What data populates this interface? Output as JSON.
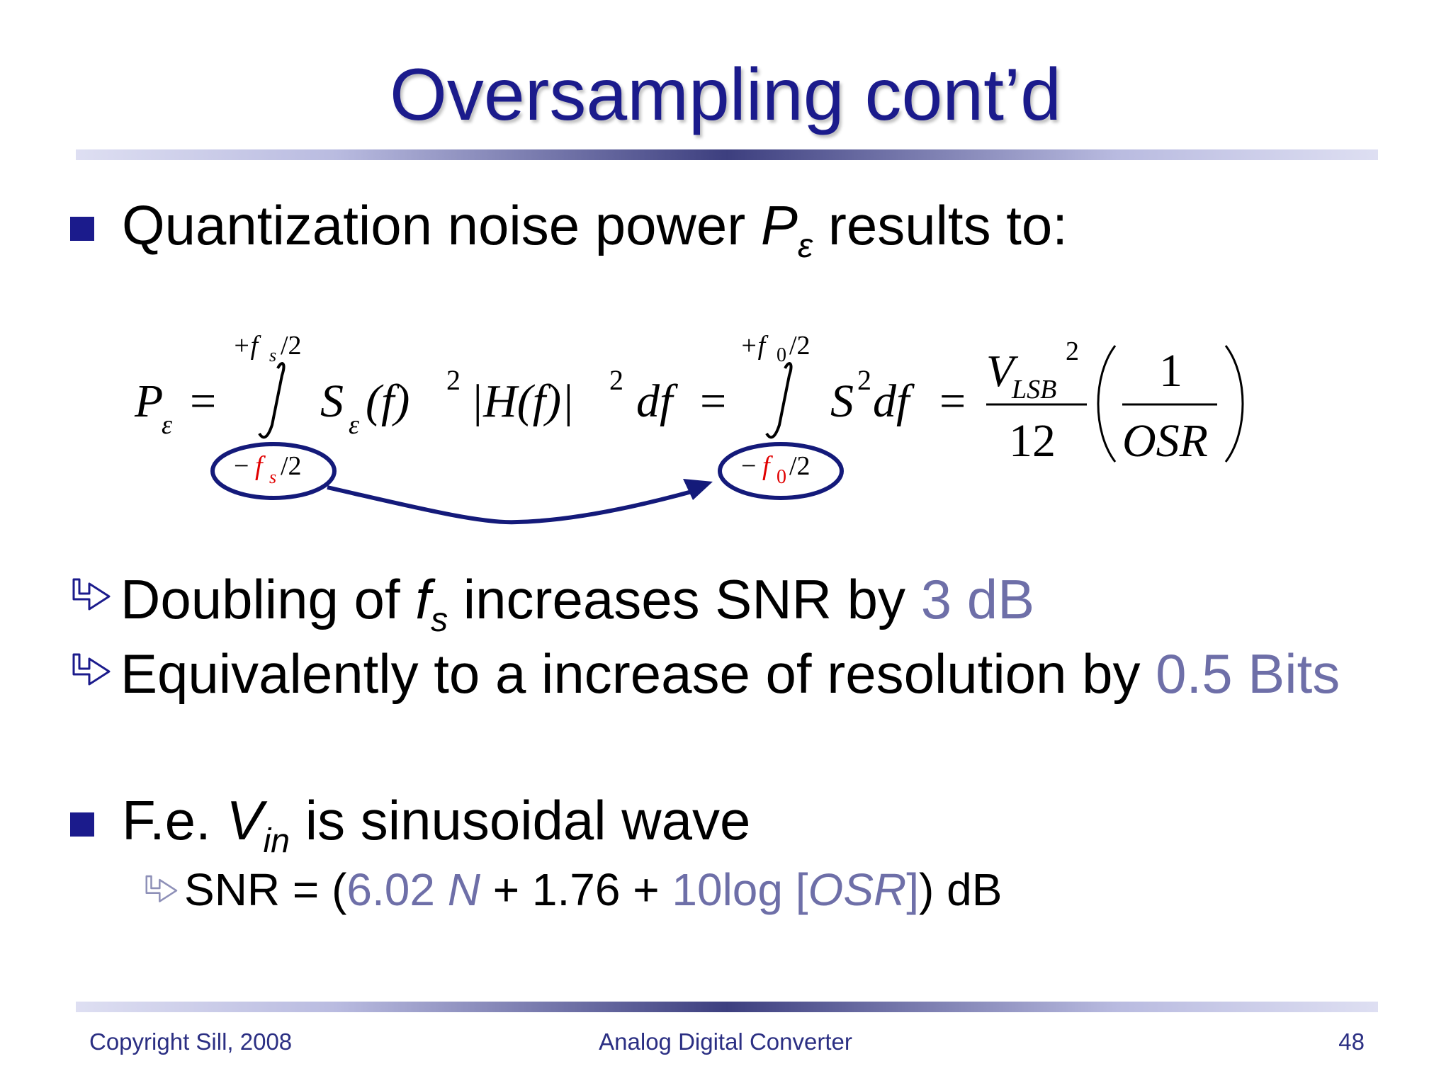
{
  "slide": {
    "title": "Oversampling cont’d",
    "bullet1": {
      "text_before": "Quantization noise power ",
      "symbol": "P",
      "subscript": "ε",
      "text_after": " results to:"
    },
    "sub1": {
      "text_before": "Doubling of ",
      "symbol": "f",
      "subscript": "s",
      "text_middle": " increases SNR by ",
      "value": "3 dB"
    },
    "sub2": {
      "text": "Equivalently to a increase of resolution by ",
      "value": "0.5 Bits"
    },
    "bullet2": {
      "text_before": "F.e. ",
      "symbol": "V",
      "subscript": "in",
      "text_after": " is sinusoidal wave"
    },
    "sub3": {
      "t1": "SNR = (",
      "t2": "6.02 ",
      "t3": "N",
      "t4": " + 1.76 + ",
      "t5": "10log [",
      "t6": "OSR",
      "t7": "]",
      "t8": ") dB"
    },
    "formula": {
      "lhs": "P",
      "lhs_sub": "ε",
      "eq": "=",
      "int1_upper": "+f",
      "int1_upper_sub": "s",
      "int1_upper_tail": "/2",
      "int1_lower_sign": "−",
      "int1_lower": "f",
      "int1_lower_sub": "s",
      "int1_lower_tail": "/2",
      "integrand1_S": "S",
      "integrand1_S_sub": "ε",
      "integrand1_rest": "(f)",
      "integrand1_exp": "2",
      "integrand1_H": "|H(f)|",
      "integrand1_H_exp": "2",
      "integrand1_df": "df",
      "int2_upper": "+f",
      "int2_upper_sub": "0",
      "int2_upper_tail": "/2",
      "int2_lower_sign": "−",
      "int2_lower": "f",
      "int2_lower_sub": "0",
      "int2_lower_tail": "/2",
      "integrand2_S": "S",
      "integrand2_exp": "2",
      "integrand2_df": "df",
      "frac_num_V": "V",
      "frac_num_sub": "LSB",
      "frac_num_exp": "2",
      "frac_den": "12",
      "paren_num": "1",
      "paren_den": "OSR"
    }
  },
  "footer": {
    "left": "Copyright Sill, 2008",
    "center": "Analog Digital Converter",
    "right": "48"
  },
  "colors": {
    "title": "#1b1b8c",
    "accent": "#6e6fa8",
    "highlight_red": "#e00000",
    "ellipse": "#141a7a",
    "footer": "#2b2f83"
  }
}
